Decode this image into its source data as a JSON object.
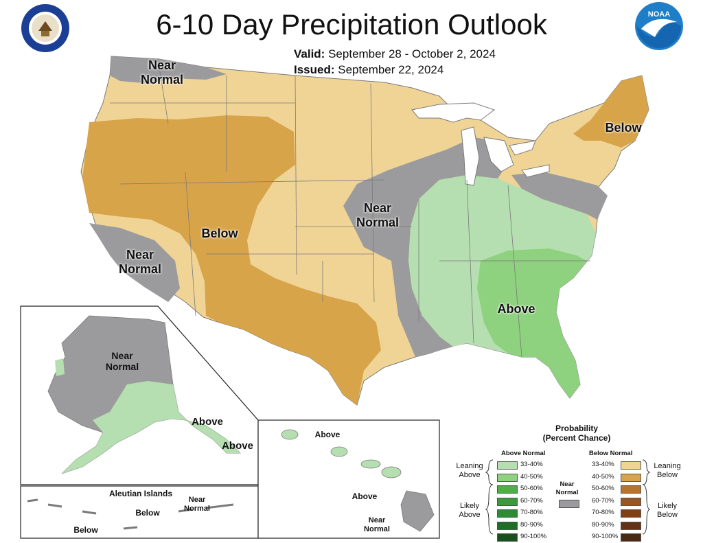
{
  "title": "6-10 Day Precipitation Outlook",
  "valid_label": "Valid:",
  "valid_value": "September 28 - October 2, 2024",
  "issued_label": "Issued:",
  "issued_value": "September 22, 2024",
  "logos": {
    "left": "dept-of-commerce-seal",
    "right": "noaa-logo"
  },
  "map_labels": {
    "nw": [
      "Near",
      "Normal"
    ],
    "west_below": "Below",
    "ne_below": "Below",
    "central": [
      "Near",
      "Normal"
    ],
    "sw": [
      "Near",
      "Normal"
    ],
    "se_above": "Above",
    "alaska_near": [
      "Near",
      "Normal"
    ],
    "alaska_above1": "Above",
    "alaska_above2": "Above",
    "aleutian_title": "Aleutian Islands",
    "aleutian_near": [
      "Near",
      "Normal"
    ],
    "aleutian_below1": "Below",
    "aleutian_below2": "Below",
    "hawaii_above1": "Above",
    "hawaii_above2": "Above",
    "hawaii_near": [
      "Near",
      "Normal"
    ]
  },
  "colors": {
    "near_normal": "#9b9b9d",
    "leaning_below": "#f0d496",
    "below_40_50": "#d8a44a",
    "leaning_above": "#b5dfb0",
    "above_40_50": "#8ed17e",
    "water": "#ffffff"
  },
  "legend": {
    "title_line1": "Probability",
    "title_line2": "(Percent Chance)",
    "above_header": "Above Normal",
    "below_header": "Below Normal",
    "near_label": [
      "Near",
      "Normal"
    ],
    "leaning_above": [
      "Leaning",
      "Above"
    ],
    "likely_above": [
      "Likely",
      "Above"
    ],
    "leaning_below": [
      "Leaning",
      "Below"
    ],
    "likely_below": [
      "Likely",
      "Below"
    ],
    "above_bins": [
      {
        "label": "33-40%",
        "color": "#b5dfb0"
      },
      {
        "label": "40-50%",
        "color": "#8ed17e"
      },
      {
        "label": "50-60%",
        "color": "#4fae4a"
      },
      {
        "label": "60-70%",
        "color": "#3c9a3c"
      },
      {
        "label": "70-80%",
        "color": "#2f8a34"
      },
      {
        "label": "80-90%",
        "color": "#1f6e28"
      },
      {
        "label": "90-100%",
        "color": "#1a4f1e"
      }
    ],
    "below_bins": [
      {
        "label": "33-40%",
        "color": "#f0d496"
      },
      {
        "label": "40-50%",
        "color": "#d8a44a"
      },
      {
        "label": "50-60%",
        "color": "#b8732e"
      },
      {
        "label": "60-70%",
        "color": "#9a5524"
      },
      {
        "label": "70-80%",
        "color": "#7f3f1b"
      },
      {
        "label": "80-90%",
        "color": "#643116"
      },
      {
        "label": "90-100%",
        "color": "#4a2a12"
      }
    ],
    "near_color": "#9b9b9d"
  }
}
